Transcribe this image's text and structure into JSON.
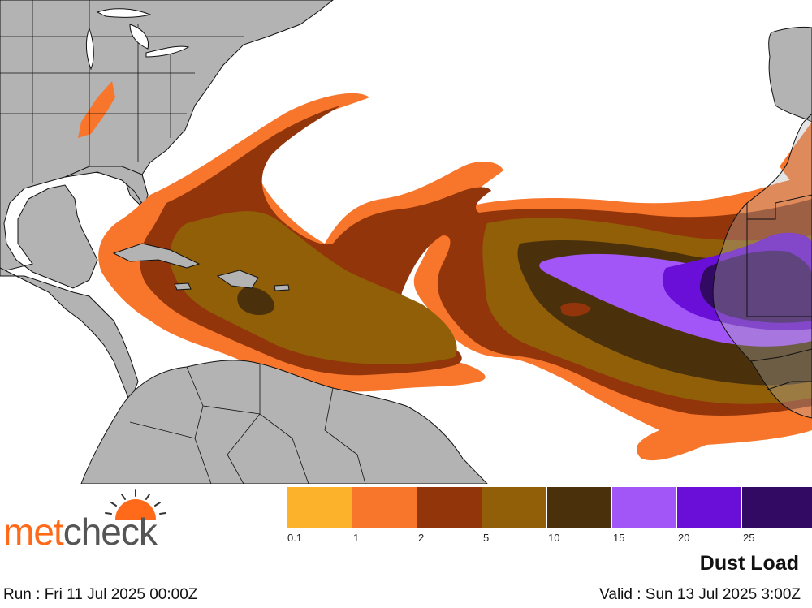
{
  "map": {
    "land_color": "#b3b3b3",
    "ocean_color": "#ffffff",
    "border_color": "#111111"
  },
  "logo": {
    "part1": "met",
    "part2": "check",
    "icon": "sunrise-icon"
  },
  "legend": {
    "colors": [
      "#fdb22b",
      "#f7762b",
      "#92350b",
      "#915f07",
      "#4a310c",
      "#a356f7",
      "#6a0fd8",
      "#330a63"
    ],
    "ticks": [
      "0.1",
      "1",
      "2",
      "5",
      "10",
      "15",
      "20",
      "25"
    ]
  },
  "title": "Dust Load",
  "run": "Run : Fri 11 Jul 2025 00:00Z",
  "valid": "Valid : Sun 13 Jul 2025 3:00Z"
}
